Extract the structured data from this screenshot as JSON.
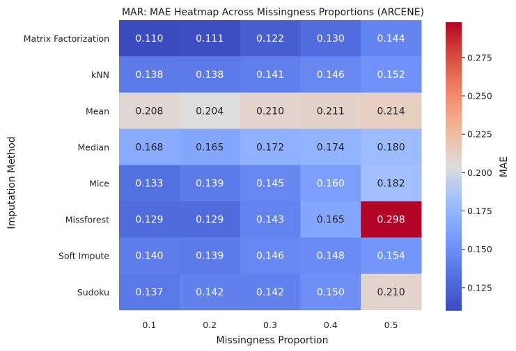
{
  "chart_data": {
    "type": "heatmap",
    "title": "MAR: MAE Heatmap Across Missingness Proportions (ARCENE)",
    "xlabel": "Missingness Proportion",
    "ylabel": "Imputation Method",
    "x_categories": [
      "0.1",
      "0.2",
      "0.3",
      "0.4",
      "0.5"
    ],
    "y_categories": [
      "Matrix Factorization",
      "kNN",
      "Mean",
      "Median",
      "Mice",
      "Missforest",
      "Soft Impute",
      "Sudoku"
    ],
    "values": [
      [
        0.11,
        0.111,
        0.122,
        0.13,
        0.144
      ],
      [
        0.138,
        0.138,
        0.141,
        0.146,
        0.152
      ],
      [
        0.208,
        0.204,
        0.21,
        0.211,
        0.214
      ],
      [
        0.168,
        0.165,
        0.172,
        0.174,
        0.18
      ],
      [
        0.133,
        0.139,
        0.145,
        0.16,
        0.182
      ],
      [
        0.129,
        0.129,
        0.143,
        0.165,
        0.298
      ],
      [
        0.14,
        0.139,
        0.146,
        0.148,
        0.154
      ],
      [
        0.137,
        0.142,
        0.142,
        0.15,
        0.21
      ]
    ],
    "value_format": "3 decimals",
    "colormap": "coolwarm",
    "colorbar": {
      "label": "MAE",
      "range": [
        0.11,
        0.298
      ],
      "ticks": [
        "0.125",
        "0.150",
        "0.175",
        "0.200",
        "0.225",
        "0.250",
        "0.275"
      ]
    },
    "grid": false
  }
}
